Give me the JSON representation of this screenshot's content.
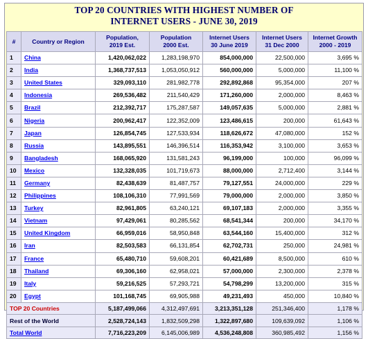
{
  "title_line1": "TOP 20 COUNTRIES WITH HIGHEST NUMBER OF",
  "title_line2": "INTERNET USERS - JUNE 30, 2019",
  "headers": [
    "#",
    "Country or Region",
    "Population,\n2019 Est.",
    "Population\n2000 Est.",
    "Internet Users\n30 June 2019",
    "Internet Users\n31 Dec 2000",
    "Internet Growth\n2000 - 2019"
  ],
  "rows": [
    {
      "rank": "1",
      "country": "China",
      "pop2019": "1,420,062,022",
      "pop2000": "1,283,198,970",
      "users2019": "854,000,000",
      "users2000": "22,500,000",
      "growth": "3,695 %"
    },
    {
      "rank": "2",
      "country": "India",
      "pop2019": "1,368,737,513",
      "pop2000": "1,053,050,912",
      "users2019": "560,000,000",
      "users2000": "5,000,000",
      "growth": "11,100 %"
    },
    {
      "rank": "3",
      "country": "United States",
      "pop2019": "329,093,110",
      "pop2000": "281,982,778",
      "users2019": "292,892,868",
      "users2000": "95,354,000",
      "growth": "207 %"
    },
    {
      "rank": "4",
      "country": "Indonesia",
      "pop2019": "269,536,482",
      "pop2000": "211,540,429",
      "users2019": "171,260,000",
      "users2000": "2,000,000",
      "growth": "8,463 %"
    },
    {
      "rank": "5",
      "country": "Brazil",
      "pop2019": "212,392,717",
      "pop2000": "175,287,587",
      "users2019": "149,057,635",
      "users2000": "5,000,000",
      "growth": "2,881 %"
    },
    {
      "rank": "6",
      "country": "Nigeria",
      "pop2019": "200,962,417",
      "pop2000": "122,352,009",
      "users2019": "123,486,615",
      "users2000": "200,000",
      "growth": "61,643 %"
    },
    {
      "rank": "7",
      "country": "Japan",
      "pop2019": "126,854,745",
      "pop2000": "127,533,934",
      "users2019": "118,626,672",
      "users2000": "47,080,000",
      "growth": "152 %"
    },
    {
      "rank": "8",
      "country": "Russia",
      "pop2019": "143,895,551",
      "pop2000": "146,396,514",
      "users2019": "116,353,942",
      "users2000": "3,100,000",
      "growth": "3,653 %"
    },
    {
      "rank": "9",
      "country": "Bangladesh",
      "pop2019": "168,065,920",
      "pop2000": "131,581,243",
      "users2019": "96,199,000",
      "users2000": "100,000",
      "growth": "96,099 %"
    },
    {
      "rank": "10",
      "country": "Mexico",
      "pop2019": "132,328,035",
      "pop2000": "101,719,673",
      "users2019": "88,000,000",
      "users2000": "2,712,400",
      "growth": "3,144 %"
    },
    {
      "rank": "11",
      "country": "Germany",
      "pop2019": "82,438,639",
      "pop2000": "81,487,757",
      "users2019": "79,127,551",
      "users2000": "24,000,000",
      "growth": "229 %"
    },
    {
      "rank": "12",
      "country": "Philippines",
      "pop2019": "108,106,310",
      "pop2000": "77,991,569",
      "users2019": "79,000,000",
      "users2000": "2,000,000",
      "growth": "3,850 %"
    },
    {
      "rank": "13",
      "country": "Turkey",
      "pop2019": "82,961,805",
      "pop2000": "63,240,121",
      "users2019": "69,107,183",
      "users2000": "2,000,000",
      "growth": "3,355 %"
    },
    {
      "rank": "14",
      "country": "Vietnam",
      "pop2019": "97,429,061",
      "pop2000": "80,285,562",
      "users2019": "68,541,344",
      "users2000": "200,000",
      "growth": "34,170 %"
    },
    {
      "rank": "15",
      "country": "United Kingdom",
      "pop2019": "66,959,016",
      "pop2000": "58,950,848",
      "users2019": "63,544,160",
      "users2000": "15,400,000",
      "growth": "312 %"
    },
    {
      "rank": "16",
      "country": "Iran",
      "pop2019": "82,503,583",
      "pop2000": "66,131,854",
      "users2019": "62,702,731",
      "users2000": "250,000",
      "growth": "24,981 %"
    },
    {
      "rank": "17",
      "country": "France",
      "pop2019": "65,480,710",
      "pop2000": "59,608,201",
      "users2019": "60,421,689",
      "users2000": "8,500,000",
      "growth": "610 %"
    },
    {
      "rank": "18",
      "country": "Thailand",
      "pop2019": "69,306,160",
      "pop2000": "62,958,021",
      "users2019": "57,000,000",
      "users2000": "2,300,000",
      "growth": "2,378 %"
    },
    {
      "rank": "19",
      "country": "Italy",
      "pop2019": "59,216,525",
      "pop2000": "57,293,721",
      "users2019": "54,798,299",
      "users2000": "13,200,000",
      "growth": "315 %"
    },
    {
      "rank": "20",
      "country": "Egypt",
      "pop2019": "101,168,745",
      "pop2000": "69,905,988",
      "users2019": "49,231,493",
      "users2000": "450,000",
      "growth": "10,840 %"
    }
  ],
  "footer": [
    {
      "label": "TOP 20 Countries",
      "pop2019": "5,187,499,066",
      "pop2000": "4,312,497,691",
      "users2019": "3,213,351,128",
      "users2000": "251,346,400",
      "growth": "1,178 %"
    },
    {
      "label": "Rest of the World",
      "pop2019": "2,528,724,143",
      "pop2000": "1,832,509,298",
      "users2019": "1,322,897,680",
      "users2000": "109,639,092",
      "growth": "1,106 %"
    },
    {
      "label": "Total World",
      "pop2019": "7,716,223,209",
      "pop2000": "6,145,006,989",
      "users2019": "4,536,248,808",
      "users2000": "360,985,492",
      "growth": "1,156 %"
    }
  ]
}
